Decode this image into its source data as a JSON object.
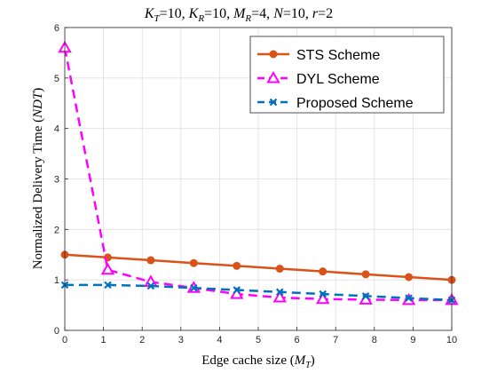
{
  "chart_data": {
    "type": "line",
    "title": "K_T=10, K_R=10, M_R=4, N=10, r=2",
    "title_parts": {
      "kt_main": "K",
      "kt_sub": "T",
      "kt_val": "=10, ",
      "kr_main": "K",
      "kr_sub": "R",
      "kr_val": "=10, ",
      "mr_main": "M",
      "mr_sub": "R",
      "mr_val": "=4, ",
      "n_main": "N",
      "n_val": "=10, ",
      "r_main": "r",
      "r_val": "=2"
    },
    "xlabel": "Edge cache size (M_T)",
    "xlabel_parts": {
      "text": "Edge cache size (",
      "var": "M",
      "sub": "T",
      "close": ")"
    },
    "ylabel": "Normalized Delivery Time (NDT)",
    "ylabel_parts": {
      "text": "Normalized Delivery Time (",
      "var": "NDT",
      "close": ")"
    },
    "xlim": [
      0,
      10
    ],
    "ylim": [
      0,
      6
    ],
    "xticks": [
      "0",
      "1",
      "2",
      "3",
      "4",
      "5",
      "6",
      "7",
      "8",
      "9",
      "10"
    ],
    "yticks": [
      "0",
      "1",
      "2",
      "3",
      "4",
      "5",
      "6"
    ],
    "grid": true,
    "legend_position": "top-right",
    "series": [
      {
        "name": "STS Scheme",
        "color": "#d95319",
        "marker": "circle",
        "dash": "solid",
        "x": [
          0,
          1.111,
          2.222,
          3.333,
          4.444,
          5.556,
          6.667,
          7.778,
          8.889,
          10
        ],
        "y": [
          1.5,
          1.444,
          1.389,
          1.333,
          1.278,
          1.222,
          1.167,
          1.111,
          1.056,
          1.0
        ]
      },
      {
        "name": "DYL Scheme",
        "color": "#ff00ff",
        "marker": "triangle",
        "dash": "dashed",
        "x": [
          0,
          1.111,
          2.222,
          3.333,
          4.444,
          5.556,
          6.667,
          7.778,
          8.889,
          10
        ],
        "y": [
          5.6,
          1.2,
          0.96,
          0.84,
          0.72,
          0.65,
          0.62,
          0.61,
          0.6,
          0.6
        ]
      },
      {
        "name": "Proposed Scheme",
        "color": "#0072bd",
        "marker": "x",
        "dash": "dashed",
        "x": [
          0,
          1.111,
          2.222,
          3.333,
          4.444,
          5.556,
          6.667,
          7.778,
          8.889,
          10
        ],
        "y": [
          0.9,
          0.9,
          0.88,
          0.84,
          0.8,
          0.76,
          0.72,
          0.68,
          0.64,
          0.6
        ]
      }
    ]
  }
}
